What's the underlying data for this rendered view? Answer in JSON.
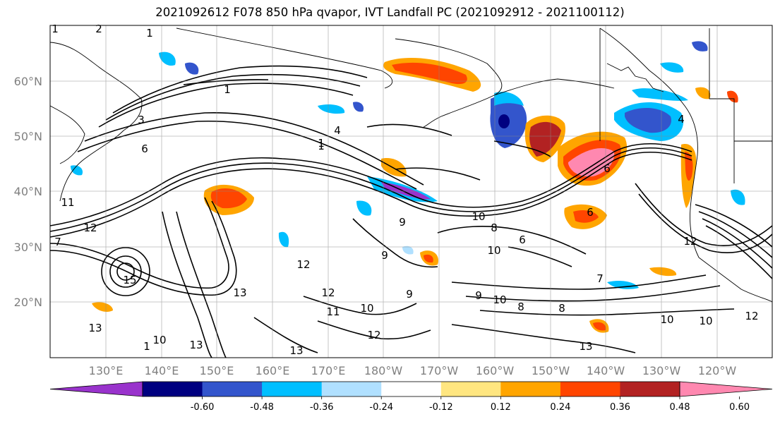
{
  "title": "2021092612 F078 850 hPa qvapor, IVT Landfall PC (2021092912 - 2021100112)",
  "map": {
    "lat_labels": [
      "60°N",
      "50°N",
      "40°N",
      "30°N",
      "20°N"
    ],
    "lon_labels": [
      "130°E",
      "140°E",
      "150°E",
      "160°E",
      "170°E",
      "180°W",
      "170°W",
      "160°W",
      "150°W",
      "140°W",
      "130°W",
      "120°W"
    ],
    "grid": true,
    "contour_color": "#000000"
  },
  "colorbar": {
    "colors": [
      "#9933cc",
      "#000080",
      "#3355cc",
      "#00bfff",
      "#b0e0ff",
      "#ffffff",
      "#ffe680",
      "#ffa500",
      "#ff4500",
      "#b22222",
      "#ff88b0"
    ],
    "tick_labels": [
      "-0.60",
      "-0.48",
      "-0.36",
      "-0.24",
      "-0.12",
      "0.12",
      "0.24",
      "0.36",
      "0.48",
      "0.60"
    ],
    "extend": "both"
  },
  "contour_labels": [
    "1",
    "2",
    "1",
    "1",
    "4",
    "1",
    "3",
    "6",
    "9",
    "12",
    "13",
    "10",
    "9",
    "12",
    "8",
    "6",
    "10",
    "9",
    "10",
    "11",
    "12",
    "13",
    "9",
    "10",
    "8",
    "13",
    "10",
    "11",
    "12",
    "13",
    "12",
    "10",
    "6",
    "4",
    "15",
    "6",
    "7",
    "8",
    "1",
    "1",
    "10",
    "13",
    "12",
    "7"
  ]
}
